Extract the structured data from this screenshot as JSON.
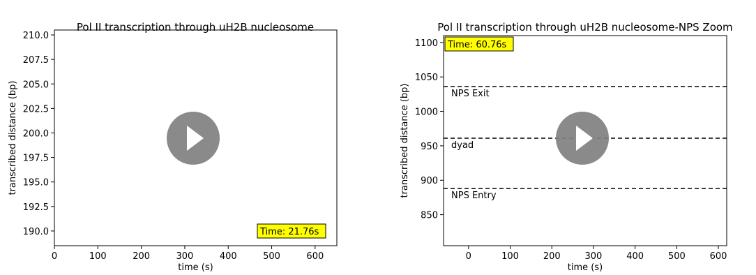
{
  "chart_data": [
    {
      "type": "line",
      "title": "Pol II transcription through uH2B nucleosome",
      "xlabel": "time (s)",
      "ylabel": "transcribed distance (bp)",
      "xlim": [
        0,
        650
      ],
      "ylim": [
        188.5,
        210.5
      ],
      "x_ticks": [
        0,
        100,
        200,
        300,
        400,
        500,
        600
      ],
      "y_ticks": [
        "190.0",
        "192.5",
        "195.0",
        "197.5",
        "200.0",
        "202.5",
        "205.0",
        "207.5",
        "210.0"
      ],
      "series": [],
      "grid": false,
      "time_label": "Time: 21.76s",
      "time_label_position": "bottom-right"
    },
    {
      "type": "line",
      "title": "Pol II transcription through uH2B nucleosome-NPS Zoom",
      "xlabel": "time (s)",
      "ylabel": "transcribed distance (bp)",
      "xlim": [
        -60,
        620
      ],
      "ylim": [
        805,
        1110
      ],
      "x_ticks": [
        0,
        100,
        200,
        300,
        400,
        500,
        600
      ],
      "y_ticks": [
        850,
        900,
        950,
        1000,
        1050,
        1100
      ],
      "series": [],
      "grid": false,
      "reference_lines": [
        {
          "y": 1036,
          "label": "NPS Exit"
        },
        {
          "y": 961,
          "label": "dyad"
        },
        {
          "y": 888,
          "label": "NPS Entry"
        }
      ],
      "time_label": "Time: 60.76s",
      "time_label_position": "top-left"
    }
  ],
  "overlay": {
    "play_icon": "play-icon",
    "play_button_color": "#808080"
  }
}
